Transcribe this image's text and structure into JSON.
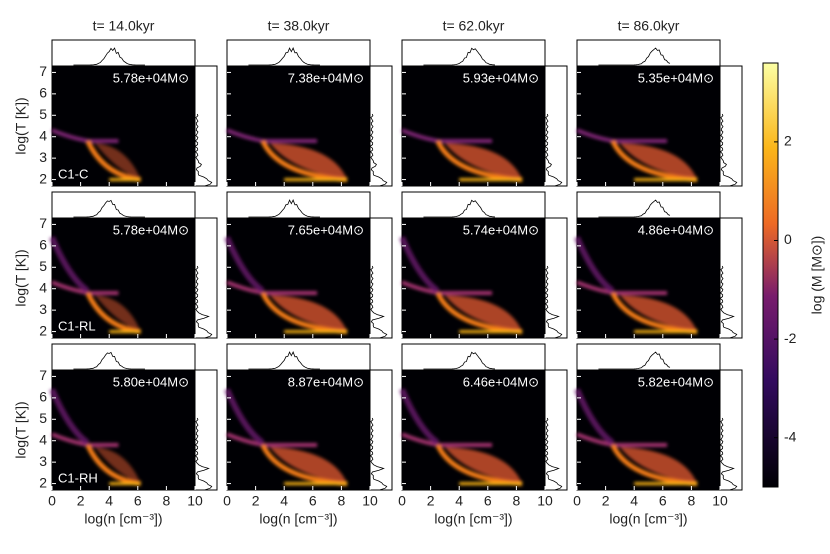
{
  "chart_data": {
    "type": "phase-grid",
    "columns": [
      "t= 14.0kyr",
      "t= 38.0kyr",
      "t= 62.0kyr",
      "t= 86.0kyr"
    ],
    "rows": [
      "C1-C",
      "C1-RL",
      "C1-RH"
    ],
    "masses": [
      [
        "5.78e+04M⊙",
        "7.38e+04M⊙",
        "5.93e+04M⊙",
        "5.35e+04M⊙"
      ],
      [
        "5.78e+04M⊙",
        "7.65e+04M⊙",
        "5.74e+04M⊙",
        "4.86e+04M⊙"
      ],
      [
        "5.80e+04M⊙",
        "8.87e+04M⊙",
        "6.46e+04M⊙",
        "5.82e+04M⊙"
      ]
    ],
    "xlabel": "log(n [cm⁻³])",
    "ylabel": "log(T [K])",
    "xlim": [
      0,
      10
    ],
    "xticks": [
      0,
      2,
      4,
      6,
      8,
      10
    ],
    "ylim": [
      1.7,
      7.3
    ],
    "yticks": [
      2,
      3,
      4,
      5,
      6,
      7
    ],
    "colorbar": {
      "label": "log (M [M⊙])",
      "lim": [
        -5,
        3.6
      ],
      "ticks": [
        -4,
        -2,
        0,
        2
      ]
    }
  }
}
